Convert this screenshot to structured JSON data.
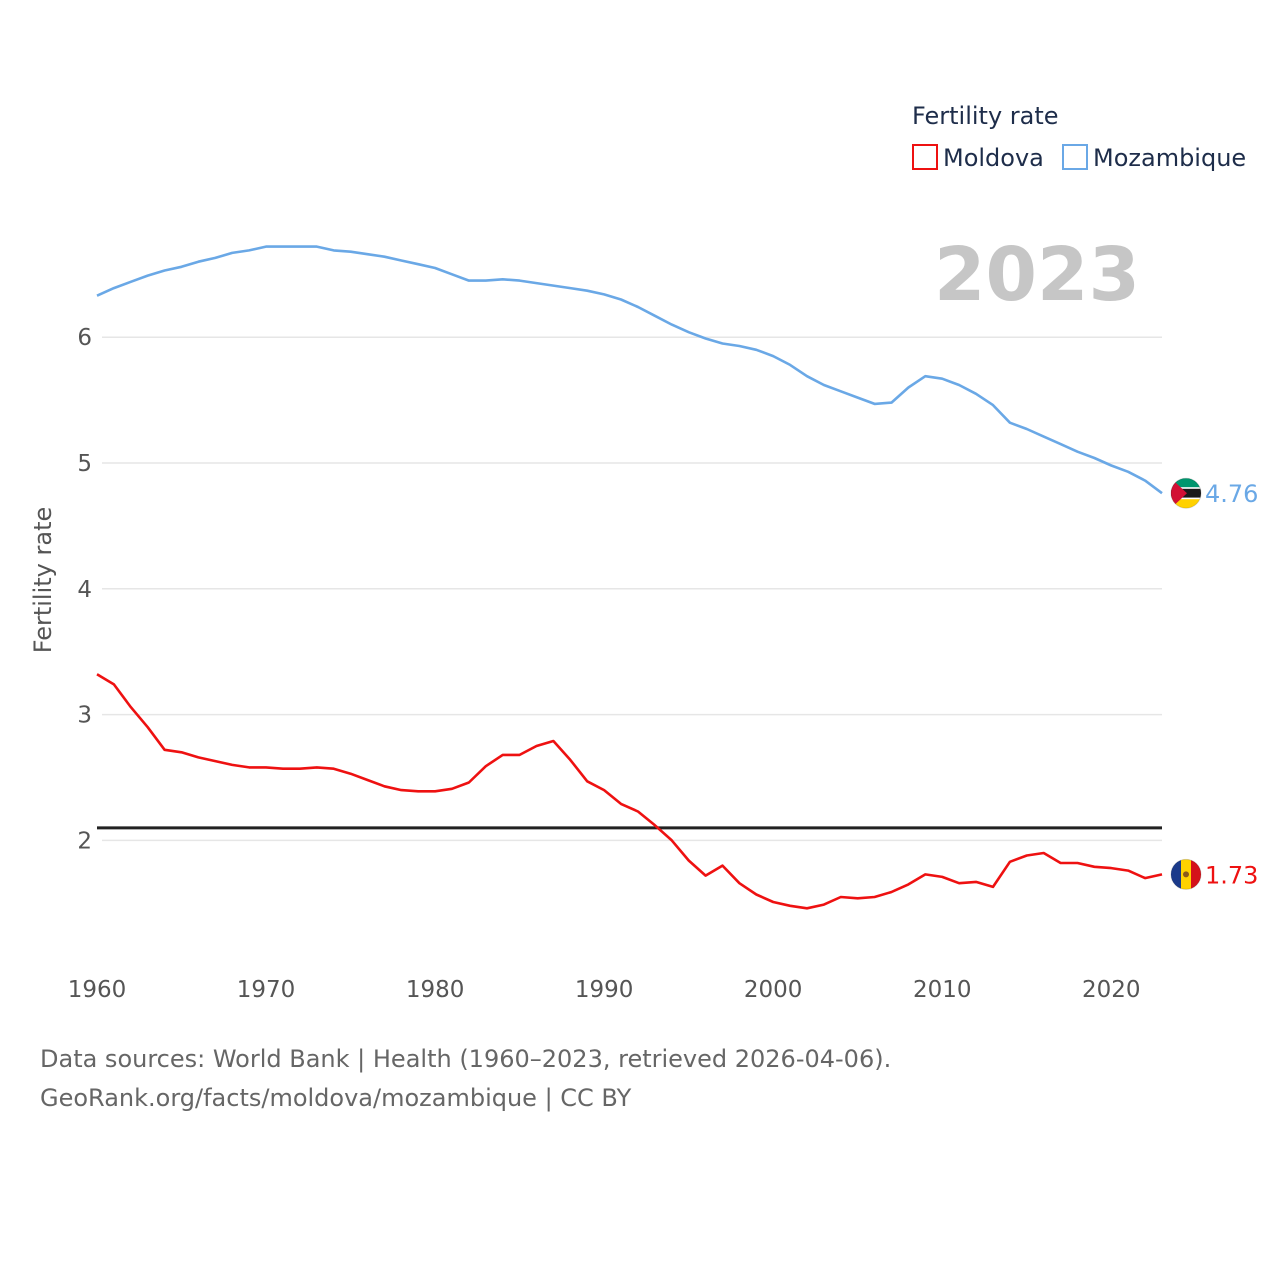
{
  "chart_data": {
    "type": "line",
    "title": "Fertility rate",
    "ylabel": "Fertility rate",
    "xlabel": "",
    "current_year": "2023",
    "xlim": [
      1960,
      2023
    ],
    "ylim": [
      1.1,
      7.0
    ],
    "x_ticks": [
      1960,
      1970,
      1980,
      1990,
      2000,
      2010,
      2020
    ],
    "y_ticks": [
      2,
      3,
      4,
      5,
      6
    ],
    "reference_line": 2.1,
    "grid": true,
    "legend_position": "top-right",
    "x": [
      1960,
      1961,
      1962,
      1963,
      1964,
      1965,
      1966,
      1967,
      1968,
      1969,
      1970,
      1971,
      1972,
      1973,
      1974,
      1975,
      1976,
      1977,
      1978,
      1979,
      1980,
      1981,
      1982,
      1983,
      1984,
      1985,
      1986,
      1987,
      1988,
      1989,
      1990,
      1991,
      1992,
      1993,
      1994,
      1995,
      1996,
      1997,
      1998,
      1999,
      2000,
      2001,
      2002,
      2003,
      2004,
      2005,
      2006,
      2007,
      2008,
      2009,
      2010,
      2011,
      2012,
      2013,
      2014,
      2015,
      2016,
      2017,
      2018,
      2019,
      2020,
      2021,
      2022,
      2023
    ],
    "series": [
      {
        "name": "Moldova",
        "color": "#ee1111",
        "end_label": "1.73",
        "flag_colors": [
          "#1b3a8a",
          "#ffd200",
          "#d4121a"
        ],
        "values": [
          3.32,
          3.24,
          3.06,
          2.9,
          2.72,
          2.7,
          2.66,
          2.63,
          2.6,
          2.58,
          2.58,
          2.57,
          2.57,
          2.58,
          2.57,
          2.53,
          2.48,
          2.43,
          2.4,
          2.39,
          2.39,
          2.41,
          2.46,
          2.59,
          2.68,
          2.68,
          2.75,
          2.79,
          2.64,
          2.47,
          2.4,
          2.29,
          2.23,
          2.12,
          2.0,
          1.84,
          1.72,
          1.8,
          1.66,
          1.57,
          1.51,
          1.48,
          1.46,
          1.49,
          1.55,
          1.54,
          1.55,
          1.59,
          1.65,
          1.73,
          1.71,
          1.66,
          1.67,
          1.63,
          1.83,
          1.88,
          1.9,
          1.82,
          1.82,
          1.79,
          1.78,
          1.76,
          1.7,
          1.73
        ]
      },
      {
        "name": "Mozambique",
        "color": "#6aa8e6",
        "end_label": "4.76",
        "flag_colors": [
          "#00966e",
          "#1a1a1a",
          "#ffd100",
          "#d21034",
          "#ffffff"
        ],
        "values": [
          6.33,
          6.39,
          6.44,
          6.49,
          6.53,
          6.56,
          6.6,
          6.63,
          6.67,
          6.69,
          6.72,
          6.72,
          6.72,
          6.72,
          6.69,
          6.68,
          6.66,
          6.64,
          6.61,
          6.58,
          6.55,
          6.5,
          6.45,
          6.45,
          6.46,
          6.45,
          6.43,
          6.41,
          6.39,
          6.37,
          6.34,
          6.3,
          6.24,
          6.17,
          6.1,
          6.04,
          5.99,
          5.95,
          5.93,
          5.9,
          5.85,
          5.78,
          5.69,
          5.62,
          5.57,
          5.52,
          5.47,
          5.48,
          5.6,
          5.69,
          5.67,
          5.62,
          5.55,
          5.46,
          5.32,
          5.27,
          5.21,
          5.15,
          5.09,
          5.04,
          4.98,
          4.93,
          4.86,
          4.76
        ]
      }
    ]
  },
  "footer": {
    "sources": "Data sources: World Bank | Health (1960–2023, retrieved 2026-04-06).",
    "link": "GeoRank.org/facts/moldova/mozambique | CC BY"
  }
}
